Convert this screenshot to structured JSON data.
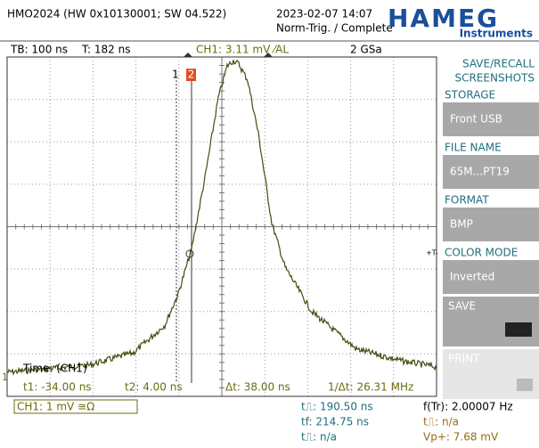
{
  "header": {
    "device": "HMO2024 (HW 0x10130001; SW 04.522)",
    "datetime": "2023-02-07 14:07",
    "trigger_state": "Norm-Trig. / Complete",
    "logo": "HAMEG",
    "logo_sub": "Instruments"
  },
  "status_bar": {
    "timebase": "TB: 100 ns",
    "trigger_time": "T: 182 ns",
    "trigger_level": "CH1: 3.11 mV ⁄AL",
    "sample_rate": "2 GSa"
  },
  "screen": {
    "cursor1_label": "1",
    "cursor2_label": "2",
    "channel_marker": "1",
    "trigger_marker": "+T-",
    "cursor_title": "Time: (CH1)",
    "t1": "t1: -34.00 ns",
    "t2": "t2: 4.00 ns",
    "delta_t": "Δt: 38.00 ns",
    "inv_delta_t": "1/Δt: 26.31 MHz"
  },
  "menu": {
    "title1": "SAVE/RECALL",
    "title2": "SCREENSHOTS",
    "items": [
      {
        "label": "STORAGE",
        "value": "Front USB"
      },
      {
        "label": "FILE NAME",
        "value": "65M...PT19"
      },
      {
        "label": "FORMAT",
        "value": "BMP"
      },
      {
        "label": "COLOR MODE",
        "value": "Inverted"
      }
    ],
    "save": "SAVE",
    "print": "PRINT"
  },
  "footer": {
    "channel": "CH1: 1 mV ≅Ω",
    "rise": "t⎍: 190.50 ns",
    "fall": "tf: 214.75 ns",
    "pulse": "t⎍: n/a",
    "freq": "f(Tr): 2.00007 Hz",
    "pulse2": "t⎍: n/a",
    "vpeak": "Vp+: 7.68 mV"
  }
}
